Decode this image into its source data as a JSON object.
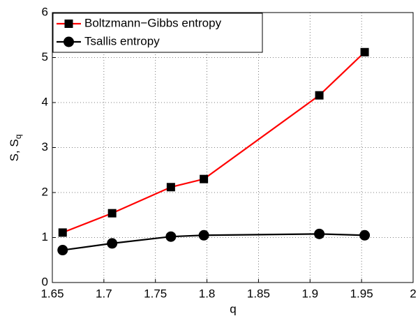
{
  "chart_data": {
    "type": "line",
    "xlabel": "q",
    "ylabel": {
      "text": "S, S",
      "subscript": "q"
    },
    "x": [
      1.66,
      1.708,
      1.765,
      1.797,
      1.909,
      1.953
    ],
    "series": [
      {
        "name": "Boltzmann−Gibbs entropy",
        "color": "#ff0000",
        "marker": "square",
        "values": [
          1.11,
          1.54,
          2.12,
          2.3,
          4.16,
          5.12
        ]
      },
      {
        "name": "Tsallis entropy",
        "color": "#000000",
        "marker": "circle",
        "values": [
          0.72,
          0.87,
          1.02,
          1.05,
          1.08,
          1.05
        ]
      }
    ],
    "xlim": [
      1.65,
      2
    ],
    "xticks": [
      1.65,
      1.7,
      1.75,
      1.8,
      1.85,
      1.9,
      1.95,
      2
    ],
    "ylim": [
      0,
      6
    ],
    "yticks": [
      0,
      1,
      2,
      3,
      4,
      5,
      6
    ],
    "grid": true,
    "legend": "upper left"
  }
}
